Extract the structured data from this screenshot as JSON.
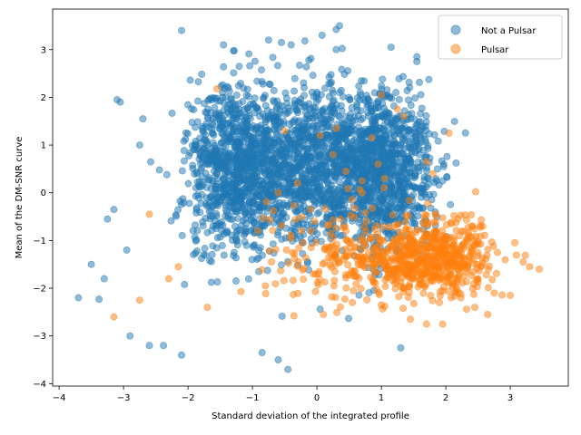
{
  "chart_data": {
    "type": "scatter",
    "title": "",
    "xlabel": "Standard deviation of the integrated profile",
    "ylabel": "Mean of the DM-SNR curve",
    "xlim": [
      -4.1,
      3.9
    ],
    "ylim": [
      -4.05,
      3.85
    ],
    "xticks": [
      -4,
      -3,
      -2,
      -1,
      0,
      1,
      2,
      3
    ],
    "yticks": [
      -4,
      -3,
      -2,
      -1,
      0,
      1,
      2,
      3
    ],
    "grid": false,
    "legend_position": "top-right",
    "series": [
      {
        "name": "Not a Pulsar",
        "color": "#1f77b4",
        "opacity": 0.5,
        "cloud": {
          "count": 3000,
          "components": [
            {
              "weight": 0.34,
              "mean": [
                -1.2,
                0.5
              ],
              "sd": [
                0.42,
                0.85
              ]
            },
            {
              "weight": 0.3,
              "mean": [
                0.0,
                0.6
              ],
              "sd": [
                0.45,
                0.85
              ]
            },
            {
              "weight": 0.36,
              "mean": [
                1.0,
                0.5
              ],
              "sd": [
                0.4,
                0.8
              ]
            }
          ],
          "clip_x": [
            -3.7,
            2.5
          ],
          "clip_y": [
            -3.7,
            3.5
          ]
        },
        "points": [
          [
            -3.7,
            -2.2
          ],
          [
            -3.5,
            -1.5
          ],
          [
            -3.38,
            -2.23
          ],
          [
            -3.3,
            -1.8
          ],
          [
            -3.25,
            -0.55
          ],
          [
            -3.15,
            -0.35
          ],
          [
            -3.1,
            1.95
          ],
          [
            -3.05,
            1.9
          ],
          [
            -2.95,
            -1.2
          ],
          [
            -2.9,
            -3.0
          ],
          [
            -2.75,
            1.0
          ],
          [
            -2.7,
            1.55
          ],
          [
            -2.6,
            -3.2
          ],
          [
            -2.38,
            -3.2
          ],
          [
            -2.1,
            3.4
          ],
          [
            -2.1,
            -3.4
          ],
          [
            -1.45,
            3.1
          ],
          [
            -0.75,
            3.2
          ],
          [
            -0.55,
            3.15
          ],
          [
            -0.4,
            3.1
          ],
          [
            -0.85,
            -3.35
          ],
          [
            -0.6,
            -3.5
          ],
          [
            -0.45,
            -3.7
          ],
          [
            0.08,
            3.3
          ],
          [
            0.35,
            3.5
          ],
          [
            0.3,
            3.0
          ],
          [
            1.15,
            3.05
          ],
          [
            1.55,
            2.85
          ],
          [
            1.55,
            2.75
          ],
          [
            1.3,
            -3.25
          ]
        ]
      },
      {
        "name": "Pulsar",
        "color": "#ff7f0e",
        "opacity": 0.5,
        "cloud": {
          "count": 800,
          "components": [
            {
              "weight": 0.75,
              "mean": [
                1.75,
                -1.35
              ],
              "sd": [
                0.48,
                0.38
              ]
            },
            {
              "weight": 0.25,
              "mean": [
                0.4,
                -1.3
              ],
              "sd": [
                0.6,
                0.55
              ]
            }
          ],
          "clip_x": [
            -2.0,
            3.5
          ],
          "clip_y": [
            -2.8,
            1.2
          ]
        },
        "points": [
          [
            -3.15,
            -2.6
          ],
          [
            -2.75,
            -2.25
          ],
          [
            -2.6,
            -0.45
          ],
          [
            -2.3,
            -1.8
          ],
          [
            -2.15,
            -1.55
          ],
          [
            -1.7,
            -2.4
          ],
          [
            -1.55,
            2.18
          ],
          [
            -0.8,
            -1.95
          ],
          [
            -0.6,
            0.0
          ],
          [
            -0.5,
            1.3
          ],
          [
            -0.3,
            0.2
          ],
          [
            -0.1,
            -0.35
          ],
          [
            0.05,
            1.2
          ],
          [
            0.25,
            0.8
          ],
          [
            0.3,
            1.35
          ],
          [
            0.45,
            0.45
          ],
          [
            0.45,
            -0.8
          ],
          [
            0.7,
            0.25
          ],
          [
            0.7,
            0.0
          ],
          [
            0.85,
            1.15
          ],
          [
            0.95,
            0.6
          ],
          [
            1.0,
            2.05
          ],
          [
            1.05,
            0.3
          ],
          [
            1.25,
            1.75
          ],
          [
            1.35,
            1.6
          ],
          [
            1.7,
            0.65
          ],
          [
            1.8,
            0.4
          ],
          [
            1.45,
            -2.65
          ],
          [
            1.7,
            -2.75
          ],
          [
            1.95,
            -2.75
          ],
          [
            2.05,
            1.25
          ],
          [
            2.45,
            -2.4
          ],
          [
            2.65,
            -2.55
          ],
          [
            2.75,
            -2.1
          ],
          [
            3.0,
            -2.15
          ],
          [
            3.2,
            -1.45
          ],
          [
            3.3,
            -1.55
          ],
          [
            3.45,
            -1.6
          ],
          [
            1.9,
            -2.3
          ],
          [
            0.1,
            -2.55
          ],
          [
            0.55,
            -2.3
          ],
          [
            1.0,
            -2.35
          ]
        ]
      }
    ]
  }
}
